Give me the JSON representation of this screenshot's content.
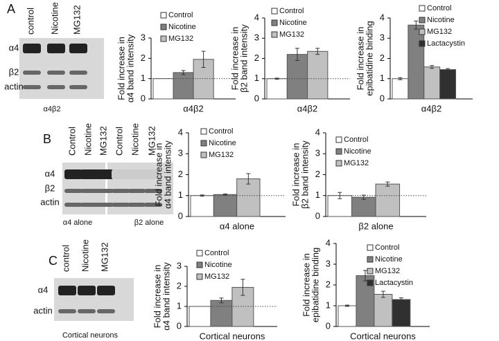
{
  "panel_labels": [
    "A",
    "B",
    "C"
  ],
  "blots": [
    {
      "lanes": [
        "control",
        "Nicotine",
        "MG132"
      ],
      "rows": [
        "α4",
        "β2",
        "actin"
      ],
      "captions": [
        "α4β2"
      ]
    },
    {
      "lanes": [
        "Control",
        "Nicotine",
        "MG132",
        "Control",
        "Nicotine",
        "MG132"
      ],
      "rows": [
        "α4",
        "β2",
        "actin"
      ],
      "captions": [
        "α4 alone",
        "β2 alone"
      ]
    },
    {
      "lanes": [
        "control",
        "Nicotine",
        "MG132"
      ],
      "rows": [
        "α4",
        "actin"
      ],
      "captions": [
        "Cortical neurons"
      ]
    }
  ],
  "chart_data": [
    {
      "type": "bar",
      "ylabel": [
        "Fold increase in",
        "α4 band intensity"
      ],
      "xlabel": "α4β2",
      "categories": [
        "Control",
        "Nicotine",
        "MG132"
      ],
      "values": [
        1,
        1.3,
        1.95
      ],
      "errors": [
        0,
        0.1,
        0.4
      ],
      "colors": [
        "#ffffff",
        "#808080",
        "#c0c0c0"
      ],
      "ylim": [
        0,
        3
      ],
      "yticks": [
        0,
        1,
        2,
        3
      ],
      "reference_line": 1
    },
    {
      "type": "bar",
      "ylabel": [
        "Fold increase in",
        "β2 band intensity"
      ],
      "xlabel": "α4β2",
      "categories": [
        "Control",
        "Nicotine",
        "MG132"
      ],
      "values": [
        1,
        2.2,
        2.35
      ],
      "errors": [
        0.03,
        0.3,
        0.15
      ],
      "colors": [
        "#ffffff",
        "#808080",
        "#c0c0c0"
      ],
      "ylim": [
        0,
        4
      ],
      "yticks": [
        0,
        1,
        2,
        3,
        4
      ],
      "reference_line": 1
    },
    {
      "type": "bar",
      "ylabel": [
        "Fold increase in",
        "epibatidine binding"
      ],
      "xlabel": "α4β2",
      "categories": [
        "Control",
        "Nicotine",
        "MG132",
        "Lactacystin"
      ],
      "values": [
        1,
        3.65,
        1.58,
        1.45
      ],
      "errors": [
        0.05,
        0.2,
        0.07,
        0.05
      ],
      "colors": [
        "#ffffff",
        "#808080",
        "#c0c0c0",
        "#303030"
      ],
      "ylim": [
        0,
        4
      ],
      "yticks": [
        0,
        1,
        2,
        3,
        4
      ]
    },
    {
      "type": "bar",
      "ylabel": [
        "Fold increase in",
        "α4 band intensity"
      ],
      "xlabel": "α4 alone",
      "categories": [
        "Control",
        "Nicotine",
        "MG132"
      ],
      "values": [
        1,
        1.05,
        1.8
      ],
      "errors": [
        0.03,
        0.03,
        0.25
      ],
      "colors": [
        "#ffffff",
        "#808080",
        "#c0c0c0"
      ],
      "ylim": [
        0,
        4
      ],
      "yticks": [
        0,
        1,
        2,
        3,
        4
      ],
      "reference_line": 1
    },
    {
      "type": "bar",
      "ylabel": [
        "Fold increase in",
        "β2 band intensity"
      ],
      "xlabel": "β2 alone",
      "categories": [
        "Control",
        "Nicotine",
        "MG132"
      ],
      "values": [
        1,
        0.92,
        1.55
      ],
      "errors": [
        0.15,
        0.1,
        0.1
      ],
      "colors": [
        "#ffffff",
        "#808080",
        "#c0c0c0"
      ],
      "ylim": [
        0,
        4
      ],
      "yticks": [
        0,
        1,
        2,
        3,
        4
      ],
      "reference_line": 1
    },
    {
      "type": "bar",
      "ylabel": [
        "Fold increase in",
        "α4 band intensity"
      ],
      "xlabel": "Cortical neurons",
      "categories": [
        "Control",
        "Nicotine",
        "MG132"
      ],
      "values": [
        1,
        1.3,
        1.95
      ],
      "errors": [
        0,
        0.12,
        0.4
      ],
      "colors": [
        "#ffffff",
        "#808080",
        "#c0c0c0"
      ],
      "ylim": [
        0,
        3
      ],
      "yticks": [
        0,
        1,
        2,
        3
      ],
      "reference_line": 1
    },
    {
      "type": "bar",
      "ylabel": [
        "Fold increase in",
        "epibatidine binding"
      ],
      "xlabel": "Cortical neurons",
      "categories": [
        "Control",
        "Nicotine",
        "MG132",
        "Lactacystin"
      ],
      "values": [
        1,
        2.45,
        1.55,
        1.3
      ],
      "errors": [
        0.03,
        0.25,
        0.15,
        0.08
      ],
      "colors": [
        "#ffffff",
        "#808080",
        "#c0c0c0",
        "#303030"
      ],
      "ylim": [
        0,
        4
      ],
      "yticks": [
        0,
        1,
        2,
        3,
        4
      ]
    }
  ]
}
